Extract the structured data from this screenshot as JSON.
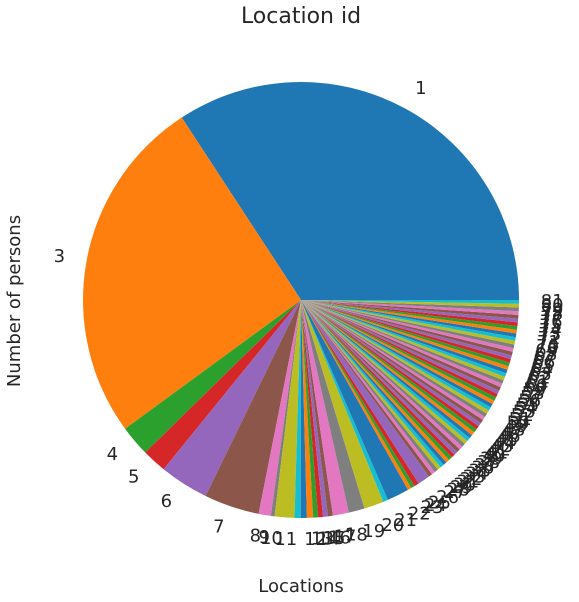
{
  "chart_data": {
    "type": "pie",
    "title": "Location id",
    "xlabel": "Locations",
    "ylabel": "Number of persons",
    "start_angle_deg": 0,
    "direction": "counterclockwise",
    "palette": [
      "#1f77b4",
      "#ff7f0e",
      "#2ca02c",
      "#d62728",
      "#9467bd",
      "#8c564b",
      "#e377c2",
      "#7f7f7f",
      "#bcbd22",
      "#17becf"
    ],
    "categories": [
      "1",
      "3",
      "4",
      "5",
      "6",
      "7",
      "8",
      "9",
      "10",
      "11",
      "12",
      "13",
      "14",
      "15",
      "16",
      "17",
      "18",
      "19",
      "20",
      "21",
      "22",
      "23",
      "24",
      "25",
      "26",
      "27",
      "28",
      "29",
      "30",
      "31",
      "32",
      "33",
      "34",
      "35",
      "36",
      "37",
      "38",
      "39",
      "40",
      "41",
      "42",
      "43",
      "44",
      "45",
      "46",
      "47",
      "48",
      "49",
      "50",
      "51",
      "52",
      "53",
      "54",
      "55",
      "56",
      "57",
      "58",
      "59",
      "60",
      "61",
      "62",
      "63",
      "64",
      "65",
      "66",
      "67",
      "68",
      "69",
      "70",
      "71",
      "72",
      "73",
      "74",
      "75",
      "76",
      "77",
      "78",
      "79",
      "80",
      "81"
    ],
    "values": [
      37.6,
      28.4,
      2.5,
      2.0,
      4.0,
      4.5,
      1.0,
      0.3,
      1.6,
      0.5,
      0.5,
      0.5,
      0.4,
      0.4,
      0.4,
      0.4,
      1.3,
      1.3,
      1.6,
      0.4,
      1.8,
      0.3,
      0.3,
      0.4,
      1.0,
      0.3,
      0.3,
      0.3,
      0.3,
      0.3,
      0.3,
      0.3,
      0.3,
      0.3,
      0.3,
      0.3,
      0.3,
      0.3,
      0.3,
      0.3,
      0.3,
      0.3,
      0.3,
      0.3,
      0.3,
      0.3,
      0.3,
      0.3,
      0.3,
      0.3,
      0.3,
      0.3,
      0.3,
      0.3,
      0.3,
      0.3,
      0.3,
      0.3,
      0.3,
      0.3,
      0.3,
      0.3,
      0.3,
      0.3,
      0.3,
      0.3,
      0.3,
      0.3,
      0.3,
      0.3,
      0.3,
      0.3,
      0.3,
      0.3,
      0.3,
      0.3,
      0.3,
      0.3,
      0.3,
      0.3
    ]
  }
}
